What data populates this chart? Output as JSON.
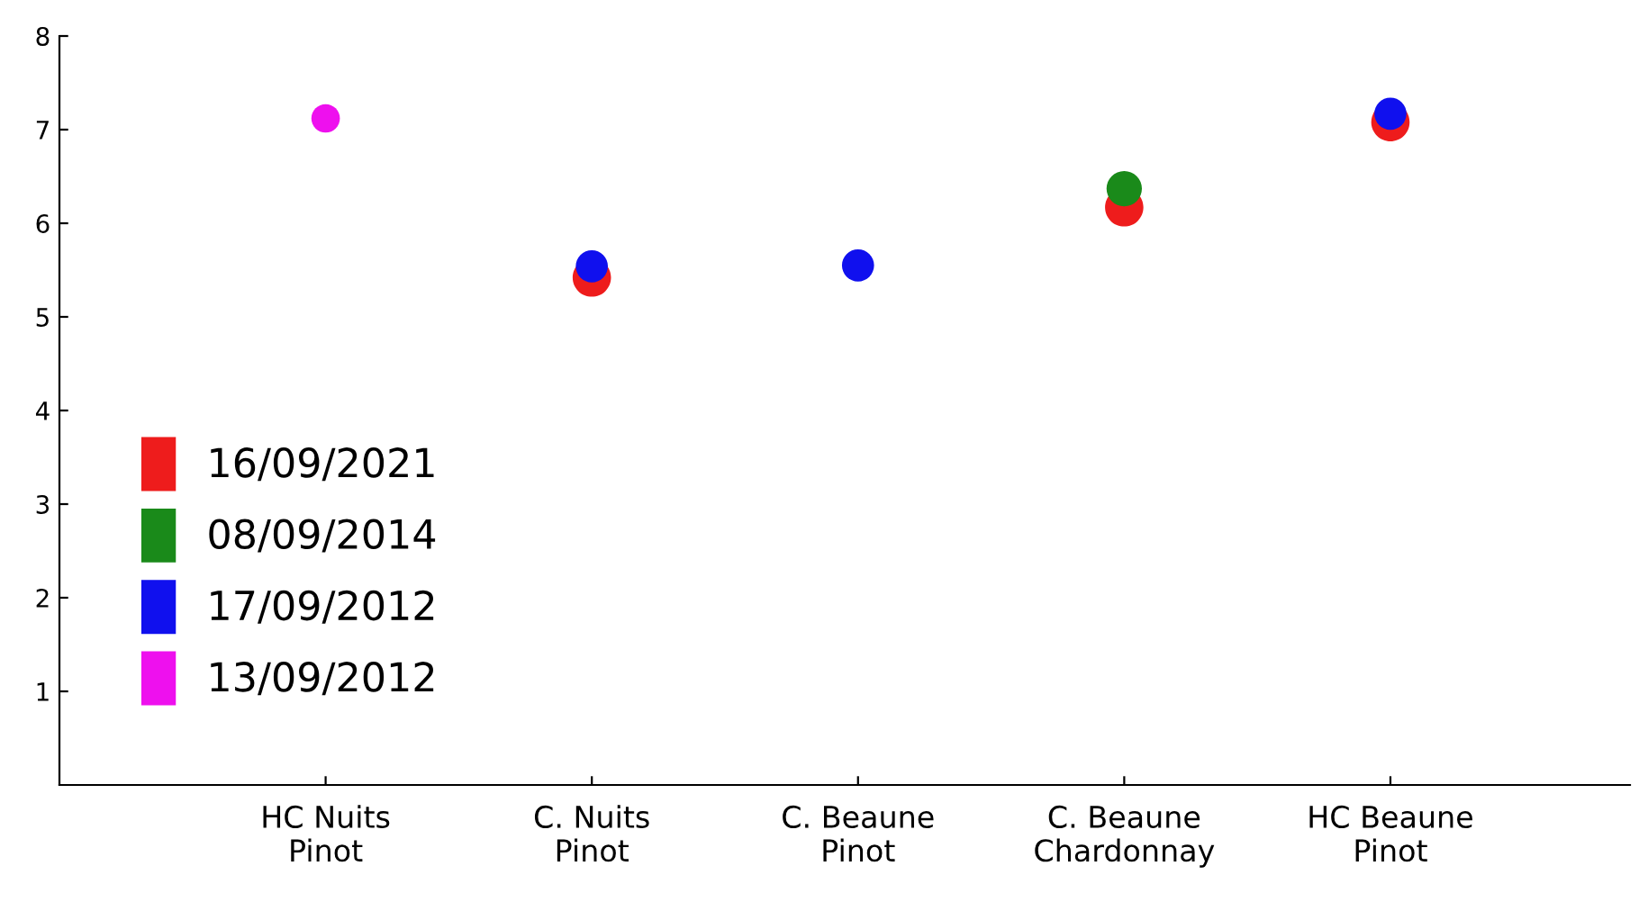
{
  "chart_data": {
    "type": "scatter",
    "categories": [
      "HC Nuits\nPinot",
      "C. Nuits\nPinot",
      "C. Beaune\nPinot",
      "C. Beaune\nChardonnay",
      "HC Beaune\nPinot"
    ],
    "series": [
      {
        "name": "16/09/2021",
        "color": "#ee1c1c",
        "values": [
          null,
          5.42,
          null,
          6.17,
          7.08
        ]
      },
      {
        "name": "08/09/2014",
        "color": "#1a8a1a",
        "values": [
          null,
          null,
          null,
          6.37,
          null
        ]
      },
      {
        "name": "17/09/2012",
        "color": "#1010ee",
        "values": [
          null,
          5.54,
          5.55,
          null,
          7.17
        ]
      },
      {
        "name": "13/09/2012",
        "color": "#ee10ee",
        "values": [
          7.12,
          null,
          null,
          null,
          null
        ]
      }
    ],
    "ylim": [
      0,
      8
    ],
    "yticks": [
      1,
      2,
      3,
      4,
      5,
      6,
      7,
      8
    ],
    "grid": false,
    "legend": "bottom left",
    "marker": "circle"
  }
}
